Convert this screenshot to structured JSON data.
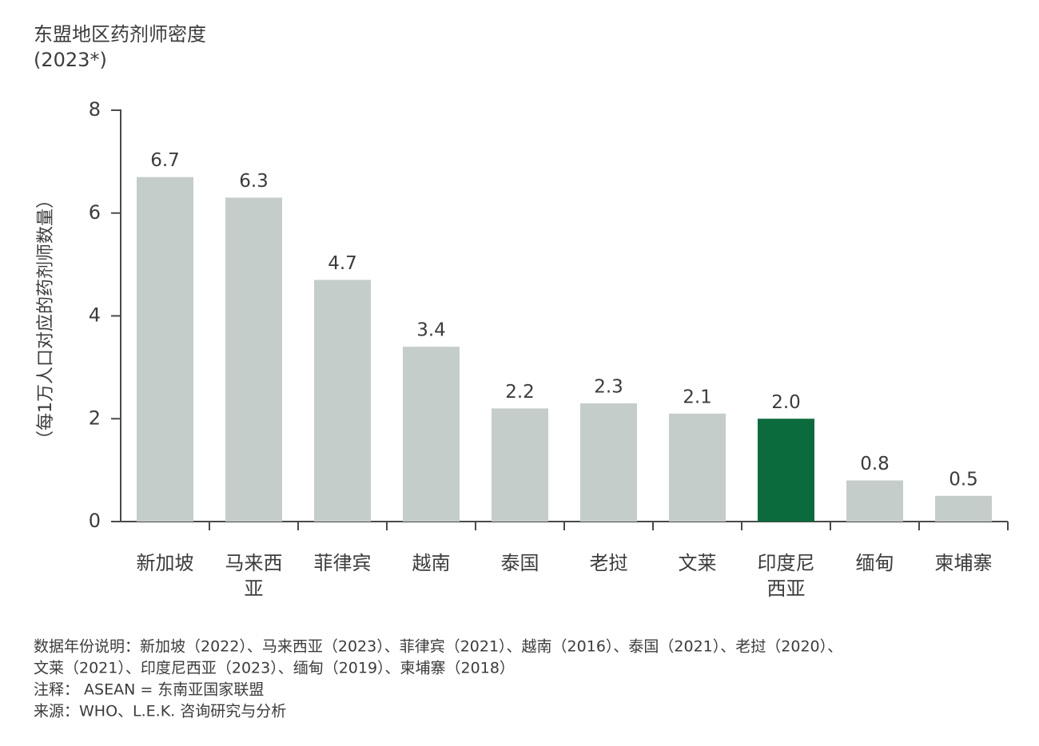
{
  "chart_data": {
    "type": "bar",
    "title": "东盟地区药剂师密度",
    "subtitle": "(2023*)",
    "y_label": "（每1万人口对应的药剂师数量）",
    "categories": [
      "新加坡",
      "马来西\n亚",
      "菲律宾",
      "越南",
      "泰国",
      "老挝",
      "文莱",
      "印度尼\n西亚",
      "缅甸",
      "柬埔寨"
    ],
    "values": [
      6.7,
      6.3,
      4.7,
      3.4,
      2.2,
      2.3,
      2.1,
      2.0,
      0.8,
      0.5
    ],
    "value_labels": [
      "6.7",
      "6.3",
      "4.7",
      "3.4",
      "2.2",
      "2.3",
      "2.1",
      "2.0",
      "0.8",
      "0.5"
    ],
    "colors": [
      "#c5cdca",
      "#c5cdca",
      "#c5cdca",
      "#c5cdca",
      "#c5cdca",
      "#c5cdca",
      "#c5cdca",
      "#0b6b3d",
      "#c5cdca",
      "#c5cdca"
    ],
    "ylim": [
      0,
      8
    ],
    "yticks": [
      0,
      2,
      4,
      6,
      8
    ],
    "grid": false,
    "notes": [
      "数据年份说明：新加坡（2022）、马来西亚（2023）、菲律宾（2021）、越南（2016）、泰国（2021）、老挝（2020）、",
      "文莱（2021）、印度尼西亚（2023）、缅甸（2019）、柬埔寨（2018）",
      "注释： ASEAN = 东南亚国家联盟",
      "来源：WHO、L.E.K. 咨询研究与分析"
    ]
  }
}
